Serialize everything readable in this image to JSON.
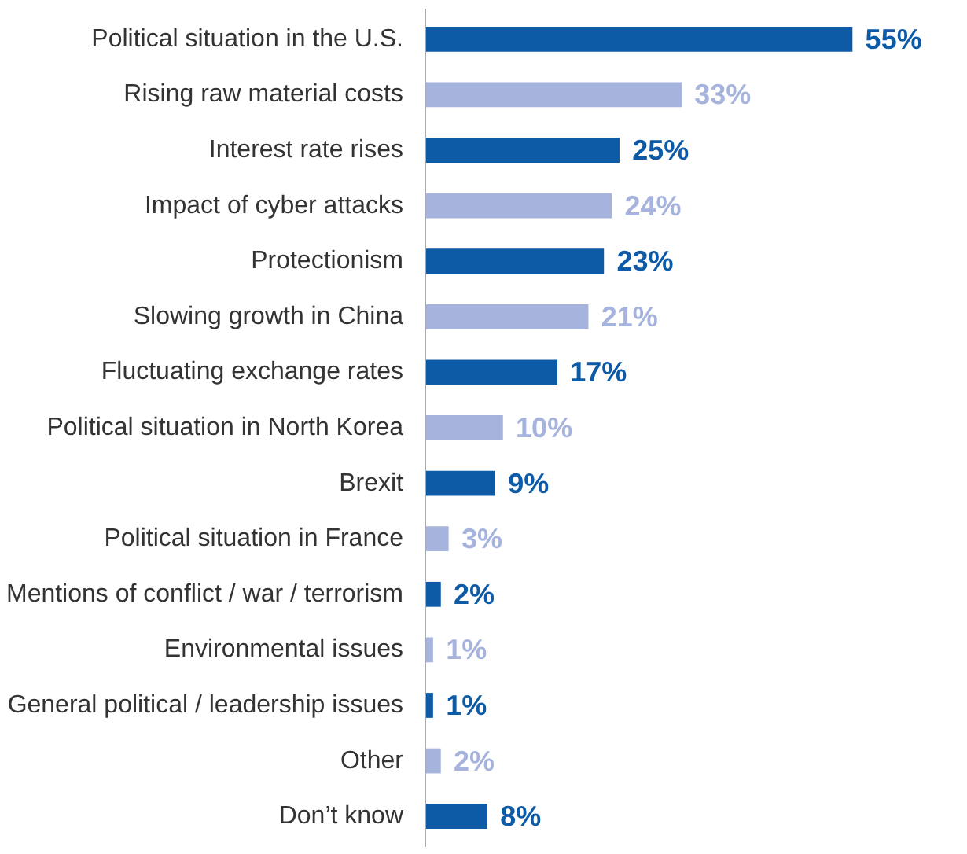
{
  "chart_data": {
    "type": "bar",
    "orientation": "horizontal",
    "data_labels": true,
    "categories": [
      "Political situation in the U.S.",
      "Rising raw material costs",
      "Interest rate rises",
      "Impact of cyber attacks",
      "Protectionism",
      "Slowing growth in China",
      "Fluctuating exchange rates",
      "Political situation in North Korea",
      "Brexit",
      "Political situation in France",
      "Mentions of conflict / war / terrorism",
      "Environmental issues",
      "General political / leadership issues",
      "Other",
      "Don’t know"
    ],
    "values": [
      55,
      33,
      25,
      24,
      23,
      21,
      17,
      10,
      9,
      3,
      2,
      1,
      1,
      2,
      8
    ],
    "value_labels": [
      "55%",
      "33%",
      "25%",
      "24%",
      "23%",
      "21%",
      "17%",
      "10%",
      "9%",
      "3%",
      "2%",
      "1%",
      "1%",
      "2%",
      "8%"
    ],
    "colors": [
      "#0d5aa7",
      "#a6b4dd",
      "#0d5aa7",
      "#a6b4dd",
      "#0d5aa7",
      "#a6b4dd",
      "#0d5aa7",
      "#a6b4dd",
      "#0d5aa7",
      "#a6b4dd",
      "#0d5aa7",
      "#a6b4dd",
      "#0d5aa7",
      "#a6b4dd",
      "#0d5aa7"
    ]
  }
}
